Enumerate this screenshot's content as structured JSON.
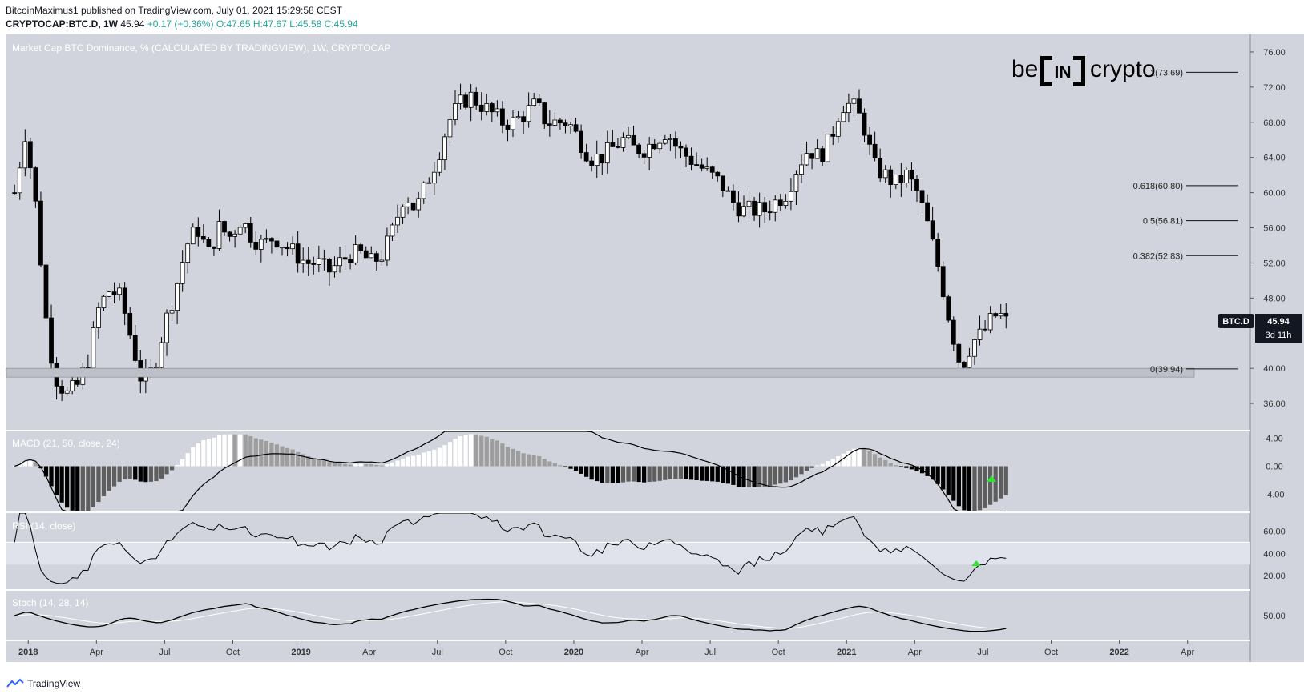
{
  "header": {
    "line1": "BitcoinMaximus1 published on TradingView.com, July 01, 2021 15:29:58 CEST",
    "symbol": "CRYPTOCAP:BTC.D, 1W",
    "last": "45.94",
    "change": "+0.17 (+0.36%)",
    "open": "O:47.65",
    "high": "H:47.67",
    "low": "L:45.58",
    "close": "C:45.94"
  },
  "footer": {
    "brand": "TradingView"
  },
  "logo": {
    "text_left": "be",
    "text_mid": "IN",
    "text_right": "crypto"
  },
  "colors": {
    "panel_bg": "#d1d4dc",
    "up_candle": "#ffffff",
    "down_candle": "#000000",
    "accent_green": "#26a69a",
    "signal_green": "#2ee52e"
  },
  "chart_data": {
    "type": "candlestick",
    "title": "Market Cap BTC Dominance, % (CALCULATED BY TRADINGVIEW), 1W, CRYPTOCAP",
    "symbol_tag": "BTC.D",
    "last_price": "45.94",
    "countdown": "3d 11h",
    "y_ticks": [
      "76.00",
      "72.00",
      "68.00",
      "64.00",
      "60.00",
      "56.00",
      "52.00",
      "48.00",
      "40.00",
      "36.00"
    ],
    "ylim": [
      33,
      78
    ],
    "x_labels": [
      "2018",
      "Apr",
      "Jul",
      "Oct",
      "2019",
      "Apr",
      "Jul",
      "Oct",
      "2020",
      "Apr",
      "Jul",
      "Oct",
      "2021",
      "Apr",
      "Jul",
      "Oct",
      "2022",
      "Apr"
    ],
    "fib_levels": [
      {
        "label": "1(73.69)",
        "value": 73.69
      },
      {
        "label": "0.618(60.80)",
        "value": 60.8
      },
      {
        "label": "0.5(56.81)",
        "value": 56.81
      },
      {
        "label": "0.382(52.83)",
        "value": 52.83
      },
      {
        "label": "0(39.94)",
        "value": 39.94
      }
    ],
    "support_zone": [
      39.0,
      40.0
    ],
    "close_path": [
      [
        2017.95,
        60
      ],
      [
        2017.99,
        67
      ],
      [
        2018.03,
        58
      ],
      [
        2018.07,
        44
      ],
      [
        2018.1,
        39
      ],
      [
        2018.14,
        37
      ],
      [
        2018.18,
        38
      ],
      [
        2018.22,
        41
      ],
      [
        2018.26,
        47
      ],
      [
        2018.3,
        49
      ],
      [
        2018.34,
        48
      ],
      [
        2018.38,
        43
      ],
      [
        2018.42,
        38
      ],
      [
        2018.46,
        40
      ],
      [
        2018.5,
        45
      ],
      [
        2018.54,
        49
      ],
      [
        2018.58,
        54
      ],
      [
        2018.62,
        56
      ],
      [
        2018.66,
        53
      ],
      [
        2018.7,
        56
      ],
      [
        2018.74,
        55
      ],
      [
        2018.78,
        57
      ],
      [
        2018.82,
        55
      ],
      [
        2018.86,
        54
      ],
      [
        2018.9,
        55
      ],
      [
        2018.94,
        54
      ],
      [
        2018.98,
        53
      ],
      [
        2019.02,
        52
      ],
      [
        2019.06,
        52
      ],
      [
        2019.1,
        51
      ],
      [
        2019.14,
        52
      ],
      [
        2019.18,
        53
      ],
      [
        2019.22,
        53
      ],
      [
        2019.26,
        52
      ],
      [
        2019.3,
        53
      ],
      [
        2019.34,
        56
      ],
      [
        2019.38,
        60
      ],
      [
        2019.42,
        58
      ],
      [
        2019.46,
        61
      ],
      [
        2019.5,
        64
      ],
      [
        2019.54,
        68
      ],
      [
        2019.58,
        70
      ],
      [
        2019.62,
        71
      ],
      [
        2019.66,
        70
      ],
      [
        2019.7,
        69
      ],
      [
        2019.74,
        68
      ],
      [
        2019.78,
        68
      ],
      [
        2019.82,
        69
      ],
      [
        2019.86,
        70
      ],
      [
        2019.9,
        68
      ],
      [
        2019.94,
        68
      ],
      [
        2019.98,
        68
      ],
      [
        2020.02,
        66
      ],
      [
        2020.06,
        64
      ],
      [
        2020.1,
        64
      ],
      [
        2020.14,
        65
      ],
      [
        2020.18,
        66
      ],
      [
        2020.22,
        65
      ],
      [
        2020.26,
        65
      ],
      [
        2020.3,
        66
      ],
      [
        2020.34,
        67
      ],
      [
        2020.38,
        65
      ],
      [
        2020.42,
        64
      ],
      [
        2020.46,
        63
      ],
      [
        2020.5,
        62
      ],
      [
        2020.54,
        61
      ],
      [
        2020.58,
        59
      ],
      [
        2020.62,
        58
      ],
      [
        2020.66,
        58
      ],
      [
        2020.7,
        58
      ],
      [
        2020.74,
        59
      ],
      [
        2020.78,
        60
      ],
      [
        2020.82,
        63
      ],
      [
        2020.86,
        65
      ],
      [
        2020.9,
        64
      ],
      [
        2020.94,
        66
      ],
      [
        2020.98,
        70
      ],
      [
        2021.02,
        70
      ],
      [
        2021.06,
        68
      ],
      [
        2021.1,
        63
      ],
      [
        2021.14,
        62
      ],
      [
        2021.18,
        61
      ],
      [
        2021.22,
        62
      ],
      [
        2021.26,
        60
      ],
      [
        2021.3,
        56
      ],
      [
        2021.34,
        51
      ],
      [
        2021.38,
        45
      ],
      [
        2021.42,
        40
      ],
      [
        2021.46,
        43
      ],
      [
        2021.5,
        44
      ],
      [
        2021.54,
        46
      ],
      [
        2021.58,
        45.94
      ]
    ],
    "indicators": [
      {
        "name": "MACD",
        "params": "MACD (21, 50, close, 24)",
        "y_ticks": [
          "4.00",
          "0.00",
          "-4.00"
        ],
        "ylim": [
          -6.5,
          5
        ]
      },
      {
        "name": "RSI",
        "params": "RSI (14, close)",
        "y_ticks": [
          "60.00",
          "40.00",
          "20.00"
        ],
        "bands": [
          30,
          50
        ],
        "ylim": [
          8,
          76
        ]
      },
      {
        "name": "Stoch",
        "params": "Stoch (14, 28, 14)",
        "y_ticks": [
          "50.00"
        ],
        "ylim": [
          0,
          100
        ]
      }
    ]
  }
}
